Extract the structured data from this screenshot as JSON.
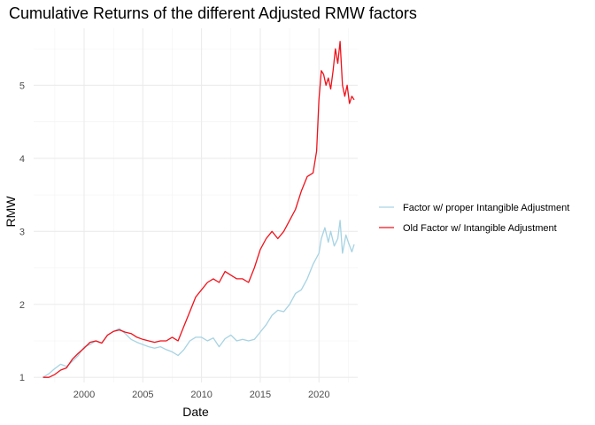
{
  "chart_data": {
    "type": "line",
    "title": "Cumulative Returns of the different Adjusted RMW factors",
    "xlabel": "Date",
    "ylabel": "RMW",
    "xlim": [
      1995.7,
      2023.3
    ],
    "ylim": [
      0.93,
      5.78
    ],
    "x_ticks": [
      2000,
      2005,
      2010,
      2015,
      2020
    ],
    "x_tick_labels": [
      "2000",
      "2005",
      "2010",
      "2015",
      "2020"
    ],
    "y_ticks": [
      1,
      2,
      3,
      4,
      5
    ],
    "y_tick_labels": [
      "1",
      "2",
      "3",
      "4",
      "5"
    ],
    "grid": true,
    "legend_position": "right",
    "series": [
      {
        "name": "Factor w/ proper Intangible Adjustment",
        "color": "#a6d3e3",
        "x": [
          1996.5,
          1997.0,
          1997.5,
          1998.0,
          1998.5,
          1999.0,
          1999.5,
          2000.0,
          2000.5,
          2001.0,
          2001.5,
          2002.0,
          2002.5,
          2003.0,
          2003.5,
          2004.0,
          2004.5,
          2005.0,
          2005.5,
          2006.0,
          2006.5,
          2007.0,
          2007.5,
          2008.0,
          2008.5,
          2009.0,
          2009.5,
          2010.0,
          2010.5,
          2011.0,
          2011.5,
          2012.0,
          2012.5,
          2013.0,
          2013.5,
          2014.0,
          2014.5,
          2015.0,
          2015.5,
          2016.0,
          2016.5,
          2017.0,
          2017.5,
          2018.0,
          2018.5,
          2019.0,
          2019.5,
          2020.0,
          2020.2,
          2020.5,
          2020.8,
          2021.0,
          2021.3,
          2021.6,
          2021.8,
          2022.0,
          2022.3,
          2022.5,
          2022.8,
          2023.0
        ],
        "values": [
          1.0,
          1.05,
          1.12,
          1.18,
          1.15,
          1.22,
          1.3,
          1.42,
          1.45,
          1.5,
          1.47,
          1.58,
          1.63,
          1.67,
          1.6,
          1.52,
          1.48,
          1.45,
          1.42,
          1.4,
          1.42,
          1.38,
          1.35,
          1.3,
          1.38,
          1.5,
          1.55,
          1.55,
          1.5,
          1.54,
          1.42,
          1.53,
          1.58,
          1.5,
          1.52,
          1.5,
          1.52,
          1.62,
          1.72,
          1.85,
          1.92,
          1.9,
          2.0,
          2.15,
          2.2,
          2.35,
          2.55,
          2.7,
          2.9,
          3.05,
          2.85,
          3.0,
          2.8,
          2.9,
          3.15,
          2.7,
          2.95,
          2.85,
          2.72,
          2.82
        ]
      },
      {
        "name": "Old Factor w/ Intangible Adjustment",
        "color": "#f0111a",
        "x": [
          1996.5,
          1997.0,
          1997.5,
          1998.0,
          1998.5,
          1999.0,
          1999.5,
          2000.0,
          2000.5,
          2001.0,
          2001.5,
          2002.0,
          2002.5,
          2003.0,
          2003.5,
          2004.0,
          2004.5,
          2005.0,
          2005.5,
          2006.0,
          2006.5,
          2007.0,
          2007.5,
          2008.0,
          2008.5,
          2009.0,
          2009.5,
          2010.0,
          2010.5,
          2011.0,
          2011.5,
          2012.0,
          2012.5,
          2013.0,
          2013.5,
          2014.0,
          2014.5,
          2015.0,
          2015.5,
          2016.0,
          2016.5,
          2017.0,
          2017.5,
          2018.0,
          2018.5,
          2019.0,
          2019.5,
          2019.8,
          2020.0,
          2020.2,
          2020.4,
          2020.6,
          2020.8,
          2021.0,
          2021.2,
          2021.4,
          2021.6,
          2021.8,
          2022.0,
          2022.2,
          2022.4,
          2022.6,
          2022.8,
          2023.0
        ],
        "values": [
          1.0,
          1.0,
          1.04,
          1.1,
          1.13,
          1.25,
          1.33,
          1.4,
          1.48,
          1.5,
          1.47,
          1.58,
          1.63,
          1.65,
          1.62,
          1.6,
          1.55,
          1.52,
          1.5,
          1.48,
          1.5,
          1.5,
          1.55,
          1.5,
          1.7,
          1.9,
          2.1,
          2.2,
          2.3,
          2.35,
          2.3,
          2.45,
          2.4,
          2.35,
          2.35,
          2.3,
          2.5,
          2.75,
          2.9,
          3.0,
          2.9,
          3.0,
          3.15,
          3.3,
          3.55,
          3.75,
          3.8,
          4.1,
          4.8,
          5.2,
          5.15,
          5.0,
          5.1,
          4.95,
          5.2,
          5.5,
          5.3,
          5.6,
          5.0,
          4.85,
          5.0,
          4.75,
          4.85,
          4.8
        ]
      }
    ]
  }
}
